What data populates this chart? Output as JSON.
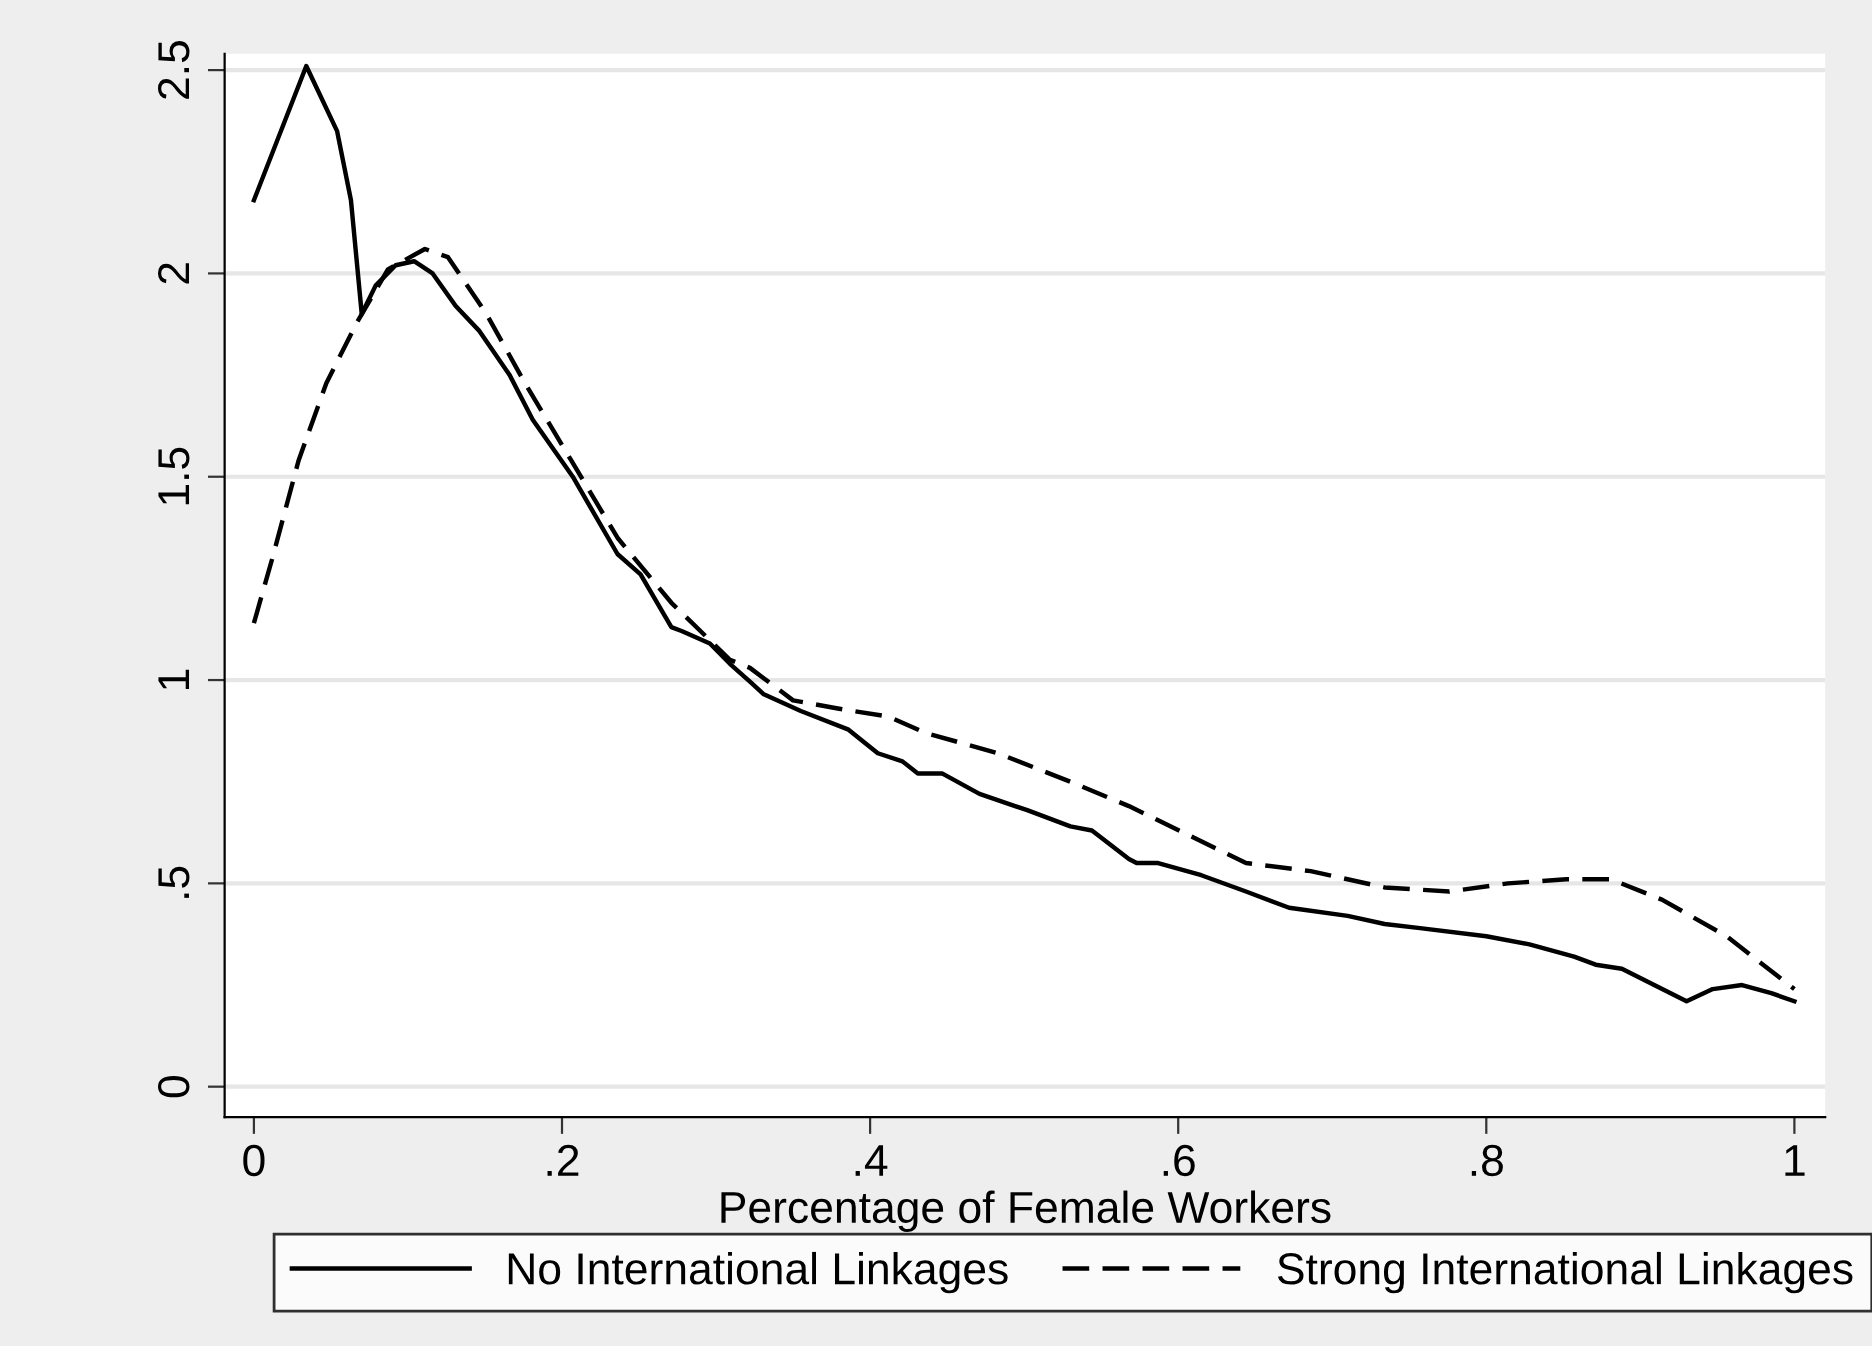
{
  "chart_data": {
    "type": "line",
    "xlabel": "Percentage of Female Workers",
    "xlim": [
      -0.019,
      1.02
    ],
    "ylim": [
      -0.075,
      2.54
    ],
    "xticks": [
      {
        "value": 0,
        "label": "0"
      },
      {
        "value": 0.2,
        "label": ".2"
      },
      {
        "value": 0.4,
        "label": ".4"
      },
      {
        "value": 0.6,
        "label": ".6"
      },
      {
        "value": 0.8,
        "label": ".8"
      },
      {
        "value": 1,
        "label": "1"
      }
    ],
    "yticks": [
      {
        "value": 0,
        "label": "0"
      },
      {
        "value": 0.5,
        "label": ".5"
      },
      {
        "value": 1,
        "label": "1"
      },
      {
        "value": 1.5,
        "label": "1.5"
      },
      {
        "value": 2,
        "label": "2"
      },
      {
        "value": 2.5,
        "label": "2.5"
      }
    ],
    "grid": "y",
    "legend": "bottom",
    "marker": "none",
    "series": [
      {
        "name": "No International Linkages",
        "color": "#000000",
        "line_style": "solid",
        "x": [
          0,
          0.034,
          0.054,
          0.063,
          0.07,
          0.079,
          0.092,
          0.104,
          0.116,
          0.131,
          0.146,
          0.166,
          0.181,
          0.207,
          0.236,
          0.251,
          0.271,
          0.278,
          0.296,
          0.309,
          0.322,
          0.331,
          0.355,
          0.386,
          0.405,
          0.421,
          0.431,
          0.447,
          0.471,
          0.502,
          0.53,
          0.544,
          0.568,
          0.573,
          0.587,
          0.615,
          0.644,
          0.672,
          0.71,
          0.734,
          0.757,
          0.8,
          0.828,
          0.857,
          0.871,
          0.888,
          0.93,
          0.947,
          0.966,
          0.985,
          1.0
        ],
        "values": [
          2.18,
          2.51,
          2.35,
          2.18,
          1.9,
          1.97,
          2.02,
          2.03,
          2.0,
          1.92,
          1.86,
          1.75,
          1.64,
          1.5,
          1.31,
          1.26,
          1.13,
          1.12,
          1.09,
          1.04,
          0.996,
          0.965,
          0.924,
          0.878,
          0.82,
          0.8,
          0.77,
          0.77,
          0.72,
          0.68,
          0.64,
          0.63,
          0.56,
          0.55,
          0.55,
          0.52,
          0.48,
          0.44,
          0.42,
          0.4,
          0.39,
          0.37,
          0.35,
          0.32,
          0.3,
          0.29,
          0.21,
          0.24,
          0.25,
          0.23,
          0.21
        ]
      },
      {
        "name": "Strong International Linkages",
        "color": "#000000",
        "line_style": "dashed",
        "x": [
          0,
          0.012,
          0.029,
          0.047,
          0.067,
          0.087,
          0.111,
          0.126,
          0.151,
          0.176,
          0.206,
          0.236,
          0.271,
          0.309,
          0.322,
          0.35,
          0.379,
          0.412,
          0.436,
          0.483,
          0.53,
          0.568,
          0.606,
          0.644,
          0.686,
          0.734,
          0.776,
          0.814,
          0.852,
          0.881,
          0.914,
          0.956,
          1.0
        ],
        "values": [
          1.14,
          1.3,
          1.54,
          1.73,
          1.88,
          2.01,
          2.06,
          2.04,
          1.9,
          1.73,
          1.54,
          1.35,
          1.19,
          1.05,
          1.03,
          0.95,
          0.93,
          0.91,
          0.87,
          0.82,
          0.75,
          0.69,
          0.62,
          0.55,
          0.53,
          0.49,
          0.48,
          0.5,
          0.51,
          0.51,
          0.46,
          0.37,
          0.24
        ]
      }
    ]
  }
}
